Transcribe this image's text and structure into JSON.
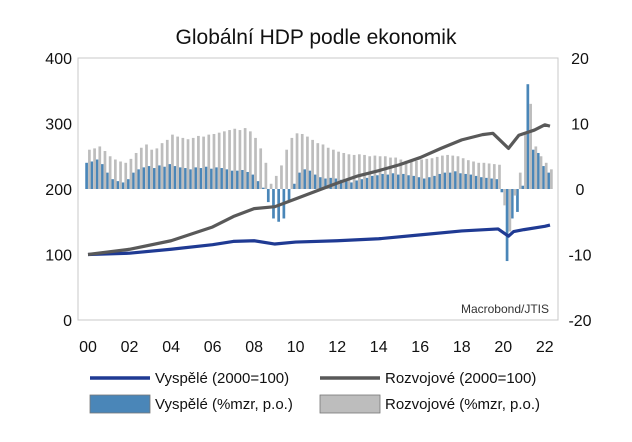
{
  "chart_data": {
    "type": "bar+line",
    "title": "Globální HDP podle ekonomik",
    "source_note": "Macrobond/JTIS",
    "x_tick_labels": [
      "00",
      "02",
      "04",
      "06",
      "08",
      "10",
      "12",
      "14",
      "16",
      "18",
      "20",
      "22"
    ],
    "left_axis": {
      "ticks": [
        "0",
        "100",
        "200",
        "300",
        "400"
      ],
      "ylim": [
        0,
        400
      ]
    },
    "right_axis": {
      "ticks": [
        "-20",
        "-10",
        "0",
        "10",
        "20"
      ],
      "ylim": [
        -20,
        20
      ]
    },
    "grid": false,
    "legend_position": "bottom",
    "legend": [
      {
        "label": "Vyspělé (2000=100)",
        "kind": "line",
        "color": "#1f3a93"
      },
      {
        "label": "Rozvojové (2000=100)",
        "kind": "line",
        "color": "#595959"
      },
      {
        "label": "Vyspělé (%mzr, p.o.)",
        "kind": "bar",
        "color": "#4a86b8"
      },
      {
        "label": "Rozvojové (%mzr, p.o.)",
        "kind": "bar",
        "color": "#bdbdbd"
      }
    ],
    "x_start_year": 2000,
    "x_end_year": 2022.25,
    "lines": [
      {
        "name": "Vyspělé (2000=100)",
        "color": "#1f3a93",
        "axis": "left",
        "points": [
          [
            2000,
            100
          ],
          [
            2002,
            102
          ],
          [
            2004,
            108
          ],
          [
            2006,
            115
          ],
          [
            2007,
            120
          ],
          [
            2008,
            121
          ],
          [
            2009,
            116
          ],
          [
            2010,
            119
          ],
          [
            2012,
            121
          ],
          [
            2014,
            124
          ],
          [
            2016,
            130
          ],
          [
            2018,
            136
          ],
          [
            2019.75,
            139
          ],
          [
            2020.25,
            128
          ],
          [
            2020.5,
            135
          ],
          [
            2021,
            138
          ],
          [
            2022,
            143
          ],
          [
            2022.25,
            145
          ]
        ]
      },
      {
        "name": "Rozvojové (2000=100)",
        "color": "#595959",
        "axis": "left",
        "points": [
          [
            2000,
            100
          ],
          [
            2002,
            108
          ],
          [
            2004,
            121
          ],
          [
            2006,
            142
          ],
          [
            2007,
            158
          ],
          [
            2008,
            170
          ],
          [
            2009,
            173
          ],
          [
            2010,
            185
          ],
          [
            2011,
            197
          ],
          [
            2012,
            209
          ],
          [
            2013,
            220
          ],
          [
            2014,
            228
          ],
          [
            2015,
            237
          ],
          [
            2016,
            248
          ],
          [
            2017,
            262
          ],
          [
            2018,
            275
          ],
          [
            2019,
            283
          ],
          [
            2019.5,
            285
          ],
          [
            2020.25,
            262
          ],
          [
            2020.75,
            282
          ],
          [
            2021.5,
            290
          ],
          [
            2022,
            298
          ],
          [
            2022.25,
            296
          ]
        ]
      }
    ],
    "bars": {
      "x": [
        2000,
        2000.25,
        2000.5,
        2000.75,
        2001,
        2001.25,
        2001.5,
        2001.75,
        2002,
        2002.25,
        2002.5,
        2002.75,
        2003,
        2003.25,
        2003.5,
        2003.75,
        2004,
        2004.25,
        2004.5,
        2004.75,
        2005,
        2005.25,
        2005.5,
        2005.75,
        2006,
        2006.25,
        2006.5,
        2006.75,
        2007,
        2007.25,
        2007.5,
        2007.75,
        2008,
        2008.25,
        2008.5,
        2008.75,
        2009,
        2009.25,
        2009.5,
        2009.75,
        2010,
        2010.25,
        2010.5,
        2010.75,
        2011,
        2011.25,
        2011.5,
        2011.75,
        2012,
        2012.25,
        2012.5,
        2012.75,
        2013,
        2013.25,
        2013.5,
        2013.75,
        2014,
        2014.25,
        2014.5,
        2014.75,
        2015,
        2015.25,
        2015.5,
        2015.75,
        2016,
        2016.25,
        2016.5,
        2016.75,
        2017,
        2017.25,
        2017.5,
        2017.75,
        2018,
        2018.25,
        2018.5,
        2018.75,
        2019,
        2019.25,
        2019.5,
        2019.75,
        2020,
        2020.25,
        2020.5,
        2020.75,
        2021,
        2021.25,
        2021.5,
        2021.75,
        2022,
        2022.25
      ],
      "series": [
        {
          "name": "Vyspělé (%mzr, p.o.)",
          "color": "#4a86b8",
          "values": [
            4,
            4.2,
            4.5,
            3.8,
            2.5,
            1.5,
            1.2,
            1.0,
            1.5,
            2.5,
            3.0,
            3.3,
            3.5,
            3.2,
            3.6,
            3.4,
            3.8,
            3.5,
            3.3,
            3.2,
            3.0,
            3.3,
            3.2,
            3.4,
            3.1,
            3.3,
            3.2,
            3.0,
            2.8,
            2.8,
            2.9,
            2.6,
            2.2,
            1.2,
            0.2,
            -2.0,
            -4.5,
            -5.0,
            -4.5,
            -2.0,
            0.8,
            2.5,
            3.0,
            2.8,
            2.2,
            1.8,
            1.6,
            1.7,
            1.6,
            1.4,
            1.2,
            1.0,
            1.3,
            1.5,
            1.7,
            2.0,
            2.1,
            2.3,
            2.2,
            2.4,
            2.2,
            2.3,
            2.1,
            2.0,
            1.8,
            1.6,
            1.8,
            2.0,
            2.3,
            2.5,
            2.5,
            2.7,
            2.4,
            2.3,
            2.2,
            2.0,
            1.8,
            1.7,
            1.6,
            1.5,
            -0.5,
            -11.0,
            -4.5,
            -3.5,
            0.5,
            16.0,
            6.0,
            5.5,
            3.5,
            2.5
          ]
        },
        {
          "name": "Rozvojové (%mzr, p.o.)",
          "color": "#bdbdbd",
          "values": [
            6.0,
            6.2,
            6.5,
            5.8,
            5.0,
            4.5,
            4.2,
            4.0,
            4.6,
            5.5,
            6.3,
            6.8,
            6.0,
            6.2,
            7.0,
            7.5,
            8.3,
            8.0,
            7.8,
            7.6,
            7.8,
            8.1,
            8.0,
            8.3,
            8.4,
            8.6,
            8.8,
            9.0,
            9.2,
            9.0,
            9.3,
            8.8,
            7.8,
            6.2,
            4.0,
            0.8,
            2.0,
            3.6,
            6.0,
            7.8,
            8.5,
            8.4,
            8.0,
            7.5,
            7.0,
            6.8,
            6.3,
            6.0,
            5.7,
            5.5,
            5.3,
            5.2,
            5.3,
            5.2,
            5.0,
            5.1,
            5.0,
            5.0,
            4.8,
            4.8,
            4.5,
            4.3,
            4.2,
            4.3,
            4.5,
            4.6,
            4.7,
            4.9,
            5.1,
            5.2,
            5.1,
            5.0,
            4.7,
            4.4,
            4.2,
            4.0,
            4.0,
            3.9,
            3.8,
            3.7,
            -2.5,
            -6.5,
            -1.0,
            2.5,
            8.5,
            13.0,
            6.5,
            5.0,
            4.0,
            3.0
          ]
        }
      ]
    }
  }
}
